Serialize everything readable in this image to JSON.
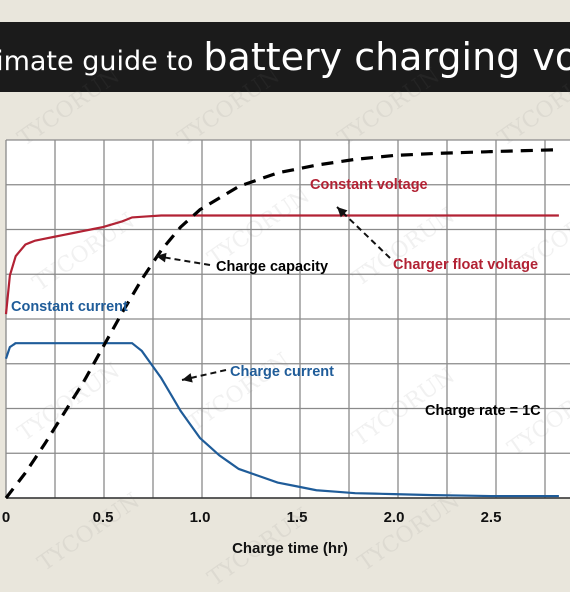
{
  "banner": {
    "text_small": "ltimate guide to",
    "text_big": "battery charging vol"
  },
  "watermark": "TYCORUN",
  "chart_data": {
    "type": "line",
    "xlabel": "Charge time (hr)",
    "ylabel": "",
    "xlim": [
      0,
      2.85
    ],
    "ylim": [
      0,
      1.85
    ],
    "xticks": [
      "0",
      "0.5",
      "1.0",
      "1.5",
      "2.0",
      "2.5"
    ],
    "grid": true,
    "series": [
      {
        "name": "Constant voltage",
        "color": "#b22234",
        "style": "solid",
        "x": [
          0,
          0.02,
          0.05,
          0.1,
          0.15,
          0.2,
          0.3,
          0.4,
          0.5,
          0.6,
          0.65,
          0.8,
          1.0,
          1.5,
          2.0,
          2.5,
          2.85
        ],
        "y": [
          0.95,
          1.15,
          1.25,
          1.31,
          1.33,
          1.34,
          1.36,
          1.38,
          1.4,
          1.43,
          1.45,
          1.46,
          1.46,
          1.46,
          1.46,
          1.46,
          1.46
        ]
      },
      {
        "name": "Charge current",
        "color": "#1f5c99",
        "style": "solid",
        "x": [
          0,
          0.02,
          0.05,
          0.1,
          0.2,
          0.4,
          0.6,
          0.65,
          0.7,
          0.8,
          0.9,
          1.0,
          1.1,
          1.2,
          1.4,
          1.6,
          1.8,
          2.0,
          2.2,
          2.5,
          2.85
        ],
        "y": [
          0.72,
          0.78,
          0.8,
          0.8,
          0.8,
          0.8,
          0.8,
          0.8,
          0.76,
          0.62,
          0.45,
          0.31,
          0.22,
          0.15,
          0.08,
          0.04,
          0.025,
          0.02,
          0.015,
          0.01,
          0.01
        ]
      },
      {
        "name": "Charge capacity",
        "color": "#000000",
        "style": "dashed",
        "x": [
          0,
          0.1,
          0.2,
          0.3,
          0.4,
          0.5,
          0.6,
          0.7,
          0.8,
          0.9,
          1.0,
          1.2,
          1.4,
          1.6,
          1.8,
          2.0,
          2.2,
          2.5,
          2.85
        ],
        "y": [
          0.0,
          0.13,
          0.28,
          0.44,
          0.6,
          0.78,
          0.96,
          1.13,
          1.28,
          1.4,
          1.49,
          1.61,
          1.68,
          1.72,
          1.75,
          1.77,
          1.78,
          1.79,
          1.8
        ]
      }
    ],
    "annotations": [
      {
        "text": "Constant voltage",
        "color": "#b22234"
      },
      {
        "text": "Charger float voltage",
        "color": "#b22234"
      },
      {
        "text": "Charge capacity",
        "color": "#000000"
      },
      {
        "text": "Constant current",
        "color": "#1f5c99"
      },
      {
        "text": "Charge current",
        "color": "#1f5c99"
      },
      {
        "text": "Charge rate = 1C",
        "color": "#000000"
      }
    ]
  }
}
